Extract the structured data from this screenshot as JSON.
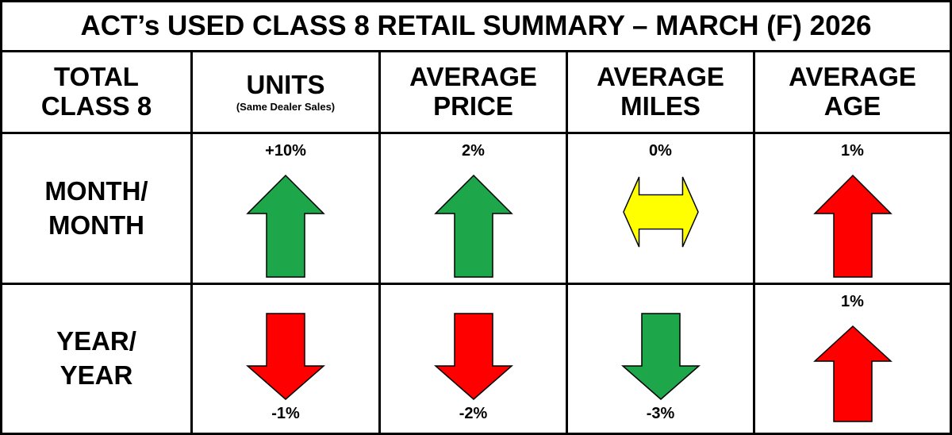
{
  "title": "ACT’s USED CLASS 8 RETAIL SUMMARY – MARCH (F) 2026",
  "header": [
    {
      "label": "TOTAL\nCLASS 8"
    },
    {
      "label": "UNITS",
      "note": "(Same Dealer Sales)"
    },
    {
      "label": "AVERAGE\nPRICE"
    },
    {
      "label": "AVERAGE\nMILES"
    },
    {
      "label": "AVERAGE\nAGE"
    }
  ],
  "rows": [
    {
      "label": "MONTH/\nMONTH",
      "cells": [
        "+10%",
        "2%",
        "0%",
        "1%"
      ]
    },
    {
      "label": "YEAR/\nYEAR",
      "cells": [
        "-1%",
        "-2%",
        "-3%",
        "1%"
      ]
    }
  ]
}
